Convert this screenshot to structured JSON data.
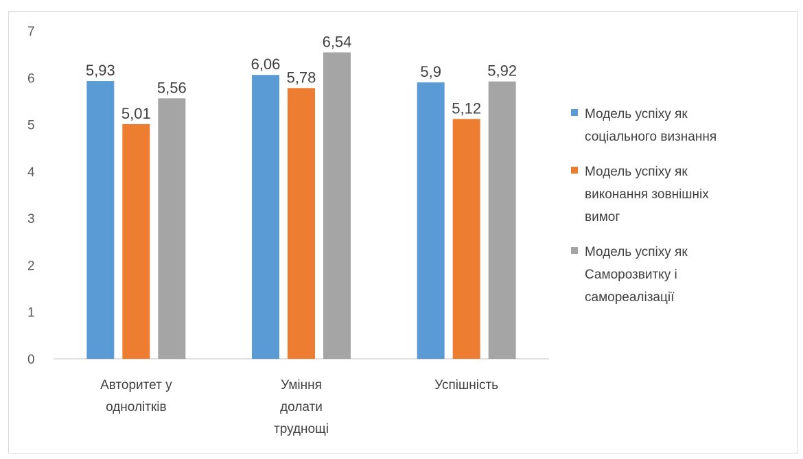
{
  "chart_data": {
    "type": "bar",
    "categories": [
      "Авторитет у однолітків",
      "Уміння долати труднощі",
      "Успішність"
    ],
    "category_lines": [
      [
        "Авторитет у",
        "однолітків"
      ],
      [
        "Уміння",
        "долати",
        "труднощі"
      ],
      [
        "Успішність"
      ]
    ],
    "series": [
      {
        "name": "Модель успіху як соціального визнання",
        "values": [
          5.93,
          6.06,
          5.9
        ],
        "labels": [
          "5,93",
          "6,06",
          "5,9"
        ],
        "color": "#5b9bd5"
      },
      {
        "name": "Модель успіху як виконання зовнішніх вимог",
        "values": [
          5.01,
          5.78,
          5.12
        ],
        "labels": [
          "5,01",
          "5,78",
          "5,12"
        ],
        "color": "#ed7d31"
      },
      {
        "name": "Модель успіху як Саморозвитку і самореалізації",
        "values": [
          5.56,
          6.54,
          5.92
        ],
        "labels": [
          "5,56",
          "6,54",
          "5,92"
        ],
        "color": "#a5a5a5"
      }
    ],
    "ylim": [
      0,
      7
    ],
    "yticks": [
      "0",
      "1",
      "2",
      "3",
      "4",
      "5",
      "6",
      "7"
    ],
    "grid": false,
    "legend_position": "right",
    "legend_lines": [
      [
        "Модель успіху  як",
        "соціального  визнання"
      ],
      [
        "Модель успіху як",
        "виконання зовнішніх",
        "вимог"
      ],
      [
        "Модель успіху як",
        "Саморозвитку  і",
        "самореалізації"
      ]
    ]
  }
}
